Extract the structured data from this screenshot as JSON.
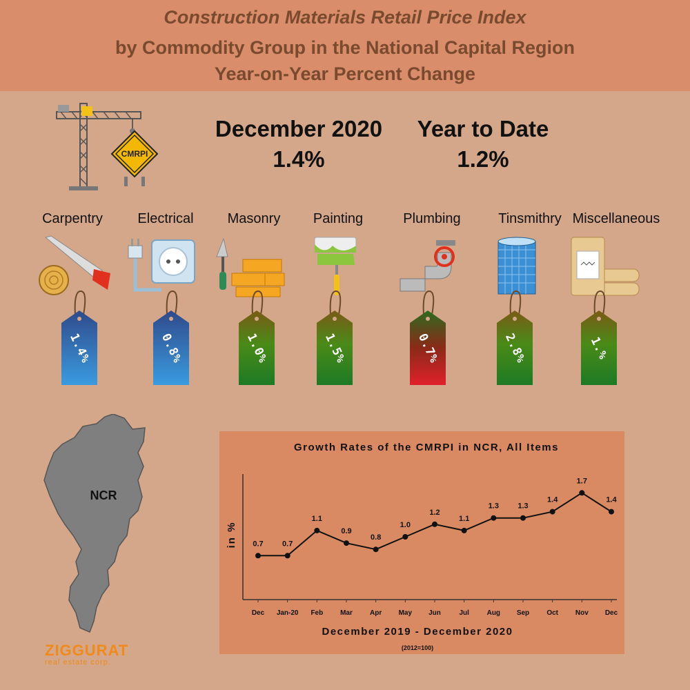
{
  "banner": {
    "line1": "Construction Materials Retail Price Index",
    "line2": "by Commodity Group in the National Capital Region",
    "line3": "Year-on-Year Percent Change"
  },
  "summary": {
    "month_label": "December 2020",
    "month_value": "1.4%",
    "ytd_label": "Year to Date",
    "ytd_value": "1.2%",
    "sign_text": "CMRPI"
  },
  "categories": [
    {
      "name": "Carpentry",
      "value": "1.4%",
      "tag": "blue"
    },
    {
      "name": "Electrical",
      "value": "0.8%",
      "tag": "blue"
    },
    {
      "name": "Masonry",
      "value": "1.0%",
      "tag": "green"
    },
    {
      "name": "Painting",
      "value": "1.5%",
      "tag": "green"
    },
    {
      "name": "Plumbing",
      "value": "0.7%",
      "tag": "red"
    },
    {
      "name": "Tinsmithry",
      "value": "2.8%",
      "tag": "green"
    },
    {
      "name": "Miscellaneous",
      "value": "1.%",
      "tag": "green"
    }
  ],
  "map": {
    "label": "NCR"
  },
  "logo": {
    "name": "ZIGGURAT",
    "sub": "real estate corp."
  },
  "colors": {
    "banner": "#d98d6a",
    "background": "#d4a68a",
    "chart_bg": "#d98a63",
    "title_text": "#7a4a2e"
  },
  "chart_data": {
    "type": "line",
    "title": "Growth Rates of the CMRPI in NCR, All Items",
    "xlabel": "December 2019 - December 2020",
    "ylabel": "in %",
    "note": "(2012=100)",
    "categories": [
      "Dec",
      "Jan-20",
      "Feb",
      "Mar",
      "Apr",
      "May",
      "Jun",
      "Jul",
      "Aug",
      "Sep",
      "Oct",
      "Nov",
      "Dec"
    ],
    "values": [
      0.7,
      0.7,
      1.1,
      0.9,
      0.8,
      1.0,
      1.2,
      1.1,
      1.3,
      1.3,
      1.4,
      1.7,
      1.4
    ],
    "value_labels": [
      "0.7",
      "0.7",
      "1.1",
      "0.9",
      "0.8",
      "1.0",
      "1.2",
      "1.1",
      "1.3",
      "1.3",
      "1.4",
      "1.7",
      "1.4"
    ],
    "ylim": [
      0,
      2.0
    ],
    "grid": false
  }
}
